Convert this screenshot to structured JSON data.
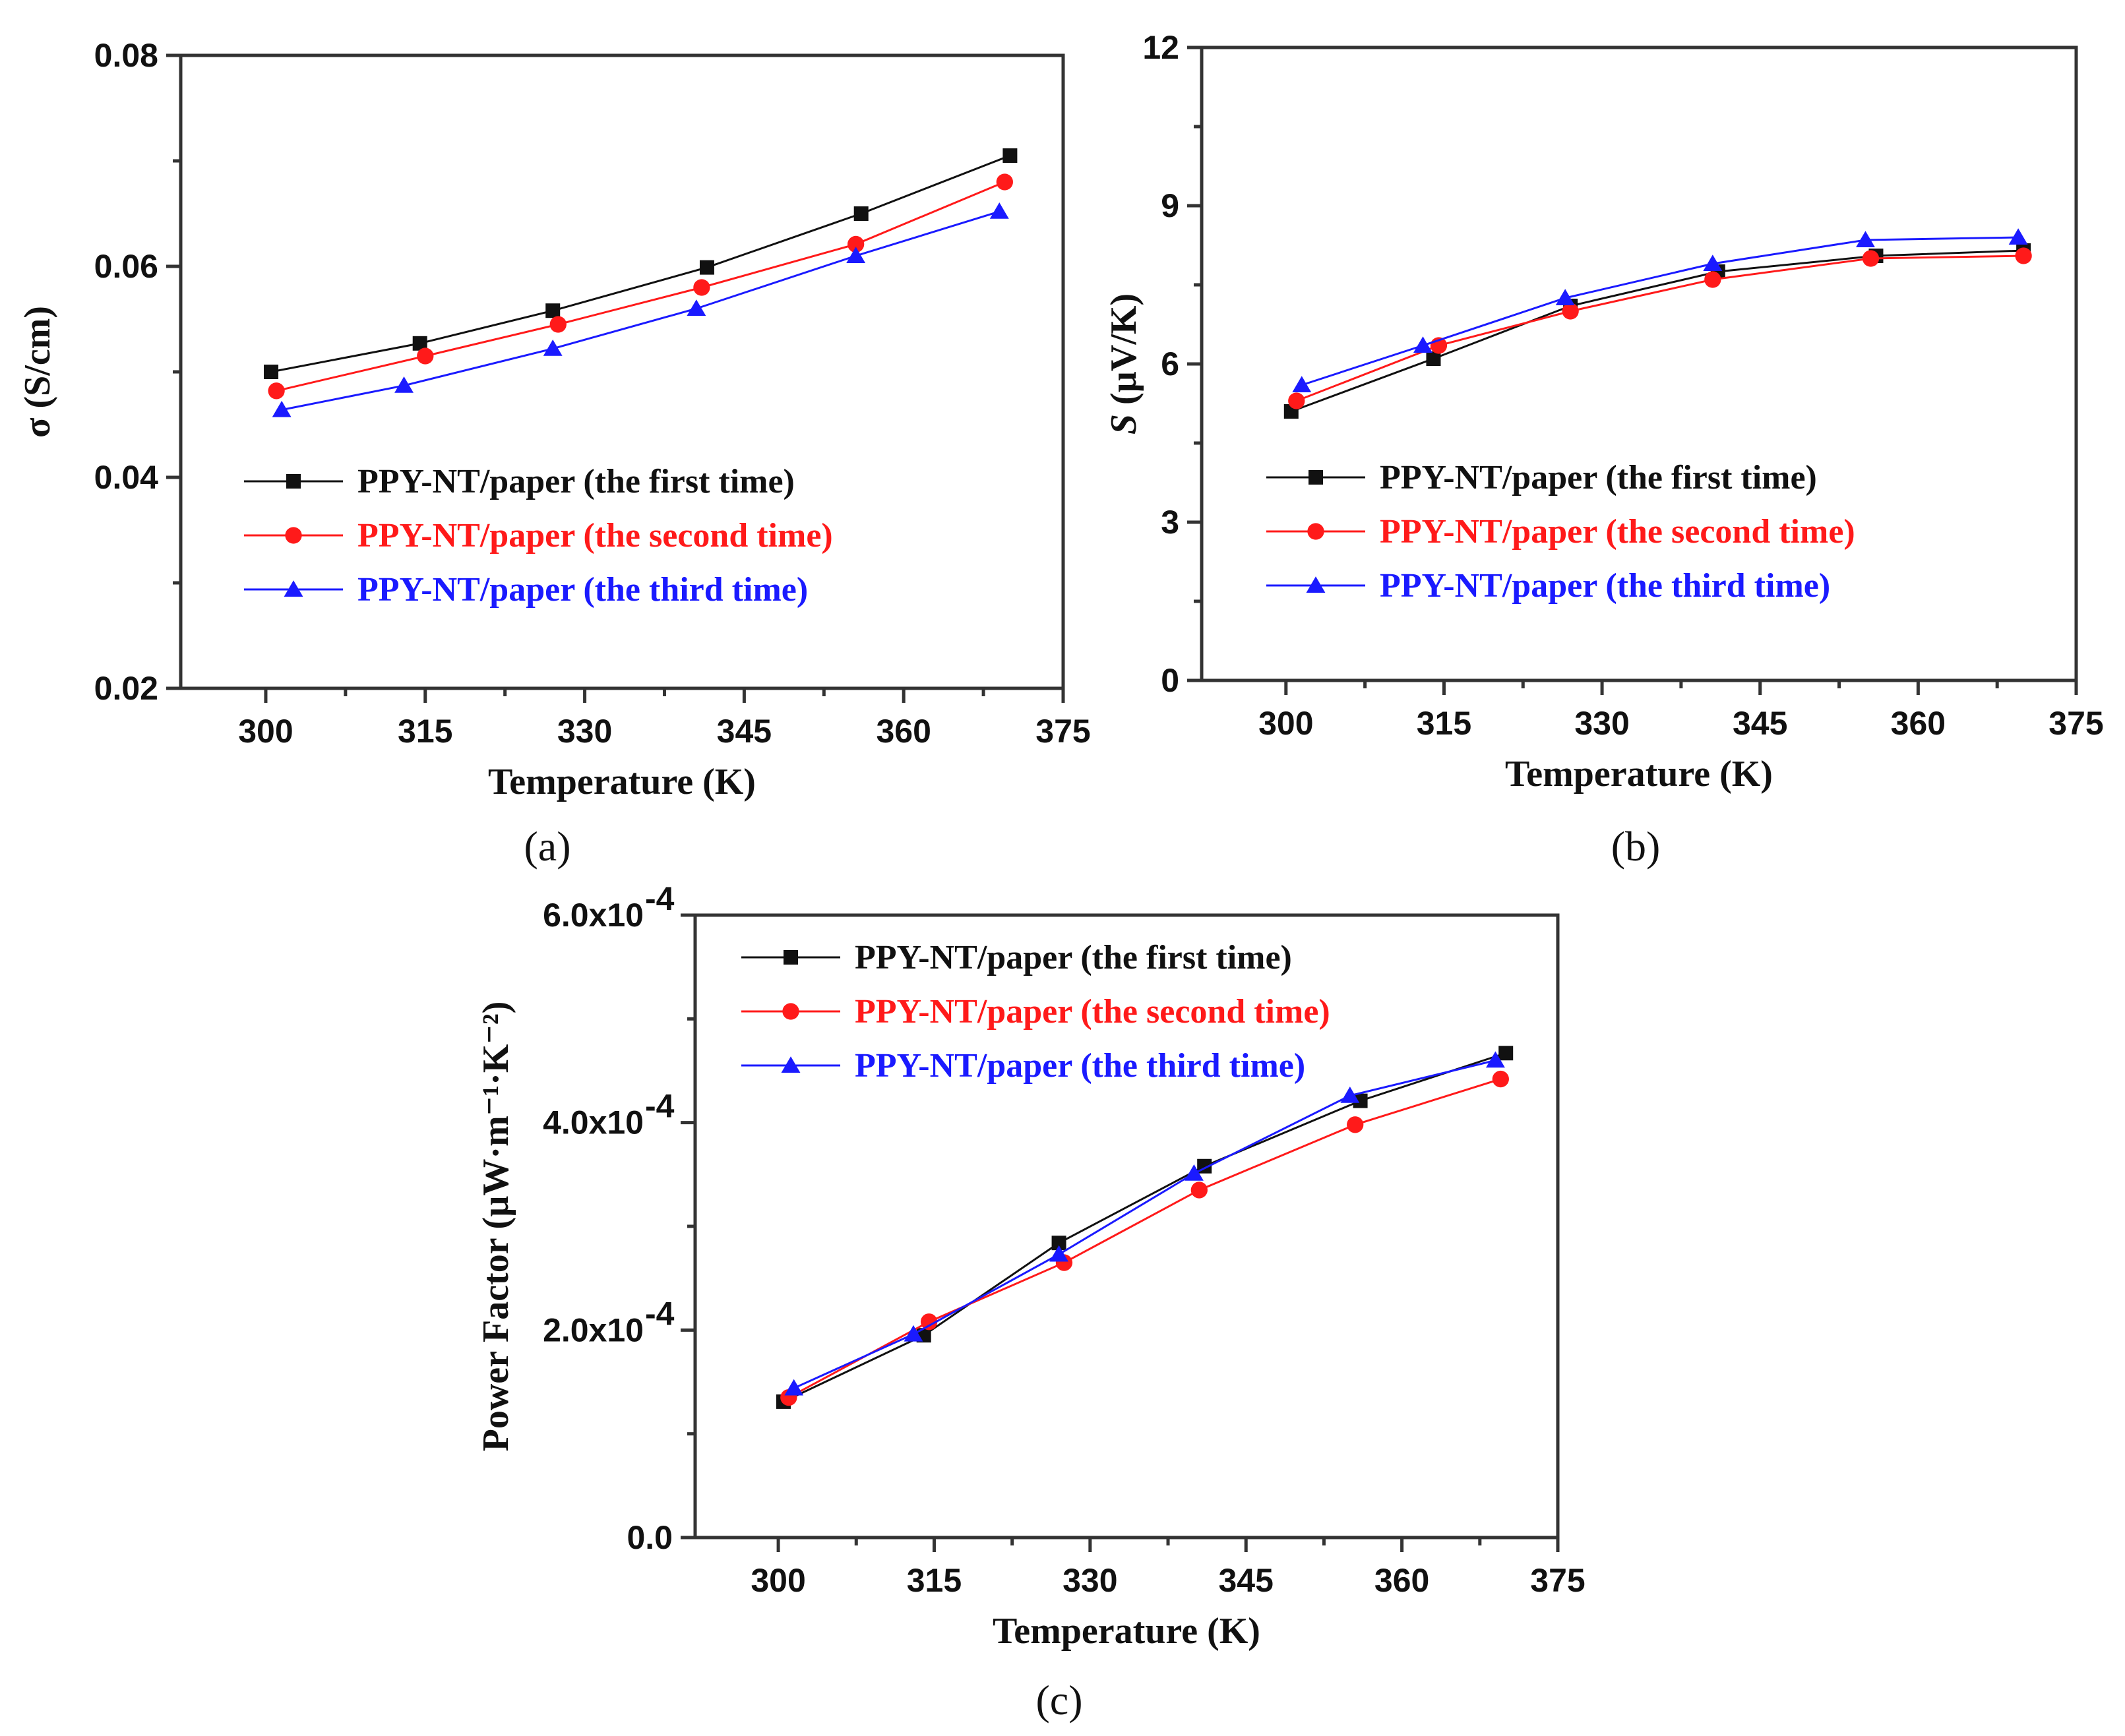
{
  "colors": {
    "series_1": "#111111",
    "series_2": "#ff1a1a",
    "series_3": "#1a1aff",
    "axis": "#333333"
  },
  "chart_data": [
    {
      "panel": "a",
      "type": "line",
      "caption": "(a)",
      "xlabel": "Temperature (K)",
      "ylabel": "σ (S/cm)",
      "xlim": [
        292,
        375
      ],
      "ylim": [
        0.02,
        0.08
      ],
      "xticks": [
        300,
        315,
        330,
        345,
        360,
        375
      ],
      "xtick_labels": [
        "300",
        "315",
        "330",
        "345",
        "360",
        "375"
      ],
      "yticks": [
        0.02,
        0.04,
        0.06,
        0.08
      ],
      "ytick_labels": [
        "0.02",
        "0.04",
        "0.06",
        "0.08"
      ],
      "legend_position": "center-left",
      "series": [
        {
          "name": "PPY-NT/paper (the first time)",
          "marker": "square",
          "color": "#111111",
          "x": [
            300.5,
            314.5,
            327,
            341.5,
            356,
            370
          ],
          "y": [
            0.05,
            0.0527,
            0.0558,
            0.0599,
            0.065,
            0.0705
          ]
        },
        {
          "name": "PPY-NT/paper (the second time)",
          "marker": "circle",
          "color": "#ff1a1a",
          "x": [
            301,
            315,
            327.5,
            341,
            355.5,
            369.5
          ],
          "y": [
            0.0482,
            0.0515,
            0.0545,
            0.058,
            0.0621,
            0.068
          ]
        },
        {
          "name": "PPY-NT/paper (the third time)",
          "marker": "triangle",
          "color": "#1a1aff",
          "x": [
            301.5,
            313,
            327,
            340.5,
            355.5,
            369
          ],
          "y": [
            0.0464,
            0.0487,
            0.0522,
            0.056,
            0.061,
            0.0652
          ]
        }
      ]
    },
    {
      "panel": "b",
      "type": "line",
      "caption": "(b)",
      "xlabel": "Temperature (K)",
      "ylabel_italic": "S",
      "ylabel_rest": " (µV/K)",
      "xlim": [
        292,
        375
      ],
      "ylim": [
        0,
        12
      ],
      "xticks": [
        300,
        315,
        330,
        345,
        360,
        375
      ],
      "xtick_labels": [
        "300",
        "315",
        "330",
        "345",
        "360",
        "375"
      ],
      "yticks": [
        0,
        3,
        6,
        9,
        12
      ],
      "ytick_labels": [
        "0",
        "3",
        "6",
        "9",
        "12"
      ],
      "legend_position": "center-left",
      "series": [
        {
          "name": "PPY-NT/paper (the first time)",
          "marker": "square",
          "color": "#111111",
          "x": [
            300.5,
            314,
            327,
            341,
            356,
            370
          ],
          "y": [
            5.1,
            6.1,
            7.1,
            7.75,
            8.05,
            8.15
          ]
        },
        {
          "name": "PPY-NT/paper (the second time)",
          "marker": "circle",
          "color": "#ff1a1a",
          "x": [
            301,
            314.5,
            327,
            340.5,
            355.5,
            370
          ],
          "y": [
            5.3,
            6.35,
            7.0,
            7.6,
            8.0,
            8.05
          ]
        },
        {
          "name": "PPY-NT/paper (the third time)",
          "marker": "triangle",
          "color": "#1a1aff",
          "x": [
            301.5,
            313,
            326.5,
            340.5,
            355,
            369.5
          ],
          "y": [
            5.6,
            6.35,
            7.25,
            7.9,
            8.35,
            8.4
          ]
        }
      ]
    },
    {
      "panel": "c",
      "type": "line",
      "caption": "(c)",
      "xlabel": "Temperature (K)",
      "ylabel": "Power Factor (µW·m⁻¹·K⁻²)",
      "xlim": [
        292,
        375
      ],
      "ylim": [
        0,
        0.0006
      ],
      "xticks": [
        300,
        315,
        330,
        345,
        360,
        375
      ],
      "xtick_labels": [
        "300",
        "315",
        "330",
        "345",
        "360",
        "375"
      ],
      "yticks": [
        0,
        0.0002,
        0.0004,
        0.0006
      ],
      "ytick_labels": [
        "0.0",
        "2.0x10",
        "4.0x10",
        "6.0x10"
      ],
      "ytick_exponents": [
        "",
        "-4",
        "-4",
        "-4"
      ],
      "legend_position": "top-left",
      "series": [
        {
          "name": "PPY-NT/paper (the first time)",
          "marker": "square",
          "color": "#111111",
          "x": [
            300.5,
            314,
            327,
            341,
            356,
            370
          ],
          "y": [
            0.000131,
            0.000195,
            0.000284,
            0.000358,
            0.000421,
            0.000467
          ]
        },
        {
          "name": "PPY-NT/paper (the second time)",
          "marker": "circle",
          "color": "#ff1a1a",
          "x": [
            301,
            314.5,
            327.5,
            340.5,
            355.5,
            369.5
          ],
          "y": [
            0.000135,
            0.000208,
            0.000265,
            0.000335,
            0.000398,
            0.000442
          ]
        },
        {
          "name": "PPY-NT/paper (the third time)",
          "marker": "triangle",
          "color": "#1a1aff",
          "x": [
            301.5,
            313,
            327,
            340,
            355,
            369
          ],
          "y": [
            0.000144,
            0.000196,
            0.000273,
            0.000351,
            0.000426,
            0.00046
          ]
        }
      ]
    }
  ]
}
